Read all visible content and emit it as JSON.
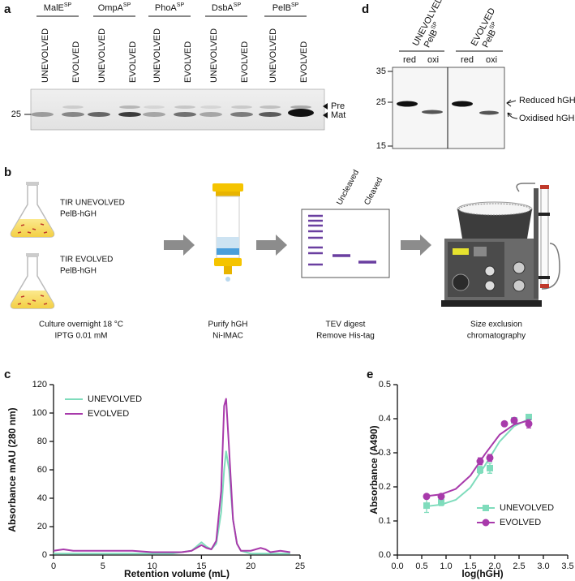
{
  "panel_a": {
    "label": "a",
    "groups": [
      {
        "name": "MalE",
        "sup": "SP"
      },
      {
        "name": "OmpA",
        "sup": "SP"
      },
      {
        "name": "PhoA",
        "sup": "SP"
      },
      {
        "name": "DsbA",
        "sup": "SP"
      },
      {
        "name": "PelB",
        "sup": "SP"
      }
    ],
    "lanes": [
      "UNEVOLVED",
      "EVOLVED"
    ],
    "marker": 25,
    "bands": [
      "Pre",
      "Mat"
    ]
  },
  "panel_d": {
    "label": "d",
    "samples": [
      {
        "name": "UNEVOLVED",
        "protein": "PelB",
        "sup": "SP"
      },
      {
        "name": "EVOLVED",
        "protein": "PelB",
        "sup": "SP"
      }
    ],
    "conditions": [
      "red",
      "oxi"
    ],
    "markers": [
      35,
      25,
      15
    ],
    "annotations": [
      "Reduced hGH",
      "Oxidised hGH"
    ]
  },
  "panel_b": {
    "label": "b",
    "flasks": [
      [
        "TIR UNEVOLVED",
        "PelB-hGH"
      ],
      [
        "TIR EVOLVED",
        "PelB-hGH"
      ]
    ],
    "gel_lanes": [
      "Uncleaved",
      "Cleaved"
    ],
    "steps": [
      [
        "Culture overnight 18 °C",
        "IPTG 0.01 mM"
      ],
      [
        "Purify hGH",
        "Ni-IMAC"
      ],
      [
        "TEV digest",
        "Remove His-tag"
      ],
      [
        "Size exclusion",
        "chromatography"
      ]
    ]
  },
  "chart_data": [
    {
      "type": "line",
      "panel_label": "c",
      "xlabel": "Retention volume (mL)",
      "ylabel": "Absorbance mAU (280 nm)",
      "xlim": [
        0,
        25
      ],
      "xticks": [
        0,
        5,
        10,
        15,
        20,
        25
      ],
      "ylim": [
        0,
        120
      ],
      "yticks": [
        0,
        20,
        40,
        60,
        80,
        100,
        120
      ],
      "legend": "upper left",
      "series": [
        {
          "name": "UNEVOLVED",
          "color": "#7fdcbc",
          "x": [
            0,
            2,
            4,
            6,
            8,
            10,
            12,
            13,
            14,
            14.5,
            15,
            15.5,
            16,
            16.5,
            17,
            17.3,
            17.5,
            17.8,
            18.2,
            18.6,
            19,
            20,
            21,
            22,
            23,
            24
          ],
          "values": [
            1,
            1,
            1,
            1,
            1,
            1,
            1,
            2,
            3,
            6,
            9,
            6,
            4,
            8,
            30,
            60,
            73,
            60,
            25,
            8,
            3,
            1,
            1,
            1,
            1,
            1
          ]
        },
        {
          "name": "EVOLVED",
          "color": "#a83aab",
          "x": [
            0,
            1,
            2,
            4,
            6,
            8,
            10,
            12,
            13,
            14,
            14.5,
            15,
            15.5,
            16,
            16.5,
            17,
            17.3,
            17.5,
            17.8,
            18.2,
            18.6,
            19,
            20,
            21,
            21.5,
            22,
            23,
            24
          ],
          "values": [
            3,
            4,
            3,
            3,
            3,
            3,
            2,
            2,
            2,
            3,
            5,
            7,
            5,
            4,
            10,
            45,
            105,
            110,
            75,
            25,
            8,
            3,
            3,
            5,
            4,
            2,
            3,
            2
          ]
        }
      ]
    },
    {
      "type": "scatter",
      "panel_label": "e",
      "xlabel": "log(hGH)",
      "ylabel": "Absorbance (A490)",
      "xlim": [
        0,
        3.5
      ],
      "xticks": [
        {
          "value": 0,
          "label": "0.0"
        },
        0.5,
        {
          "value": 1,
          "label": "1.0"
        },
        1.5,
        {
          "value": 2,
          "label": "2.0"
        },
        2.5,
        {
          "value": 3,
          "label": "3.0"
        },
        3.5
      ],
      "ylim": [
        0,
        0.5
      ],
      "yticks": [
        {
          "value": 0,
          "label": "0.0"
        },
        0.1,
        0.2,
        0.3,
        0.4,
        0.5
      ],
      "legend": "lower right",
      "series": [
        {
          "name": "UNEVOLVED",
          "color": "#7fdcbc",
          "marker": "square",
          "x": [
            0.6,
            0.9,
            1.7,
            1.9,
            2.4,
            2.7
          ],
          "values": [
            0.145,
            0.155,
            0.25,
            0.255,
            0.395,
            0.405
          ],
          "errors": [
            0.02,
            0.01,
            0.01,
            0.015,
            0.005,
            0.005
          ],
          "fit": {
            "x": [
              0.6,
              0.9,
              1.2,
              1.5,
              1.8,
              2.1,
              2.4,
              2.7
            ],
            "values": [
              0.143,
              0.148,
              0.162,
              0.198,
              0.263,
              0.333,
              0.378,
              0.399
            ]
          }
        },
        {
          "name": "EVOLVED",
          "color": "#a83aab",
          "marker": "circle",
          "x": [
            0.6,
            0.9,
            1.7,
            1.9,
            2.2,
            2.4,
            2.7
          ],
          "values": [
            0.172,
            0.172,
            0.275,
            0.285,
            0.385,
            0.395,
            0.385
          ],
          "errors": [
            0.005,
            0.005,
            0.01,
            0.01,
            0.005,
            0.005,
            0.012
          ],
          "fit": {
            "x": [
              0.6,
              0.9,
              1.2,
              1.5,
              1.8,
              2.1,
              2.4,
              2.7
            ],
            "values": [
              0.173,
              0.178,
              0.194,
              0.233,
              0.296,
              0.353,
              0.383,
              0.395
            ]
          }
        }
      ]
    }
  ]
}
